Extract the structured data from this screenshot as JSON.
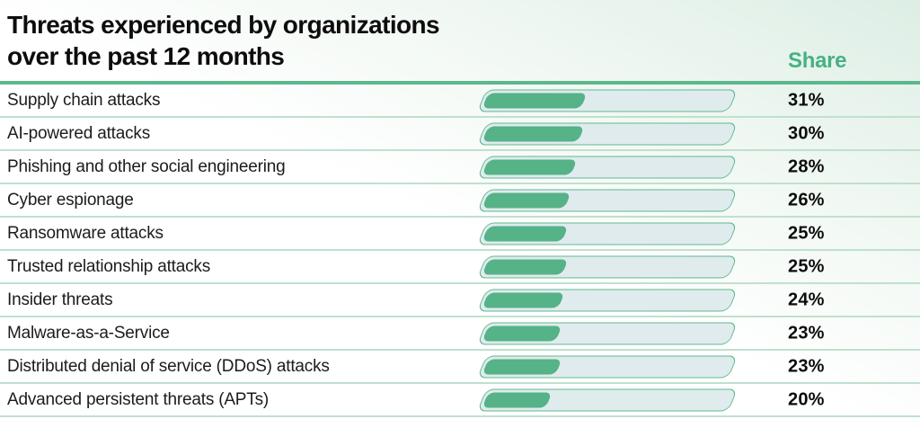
{
  "header": {
    "title_line1": "Threats experienced by organizations",
    "title_line2": "over the past 12 months",
    "share_label": "Share"
  },
  "chart_data": {
    "type": "bar",
    "orientation": "horizontal",
    "title": "Threats experienced by organizations over the past 12 months",
    "value_column_header": "Share",
    "unit": "%",
    "categories": [
      "Supply chain attacks",
      "AI-powered attacks",
      "Phishing and other social engineering",
      "Cyber espionage",
      "Ransomware attacks",
      "Trusted relationship attacks",
      "Insider threats",
      "Malware-as-a-Service",
      "Distributed denial of service (DDoS) attacks",
      "Advanced persistent threats (APTs)"
    ],
    "values": [
      31,
      30,
      28,
      26,
      25,
      25,
      24,
      23,
      23,
      20
    ],
    "value_labels": [
      "31%",
      "30%",
      "28%",
      "26%",
      "25%",
      "25%",
      "24%",
      "23%",
      "23%",
      "20%"
    ],
    "legend": null,
    "grid": "row-separators"
  },
  "colors": {
    "title_text": "#0d0d0d",
    "share_text": "#47b183",
    "bar_fill": "#56b287",
    "bar_track": "#e0ebee",
    "bar_border": "#5fb98e",
    "row_divider": "#c0e0ce",
    "header_divider": "#5cb88c",
    "background_tint": "#ddeee5"
  }
}
